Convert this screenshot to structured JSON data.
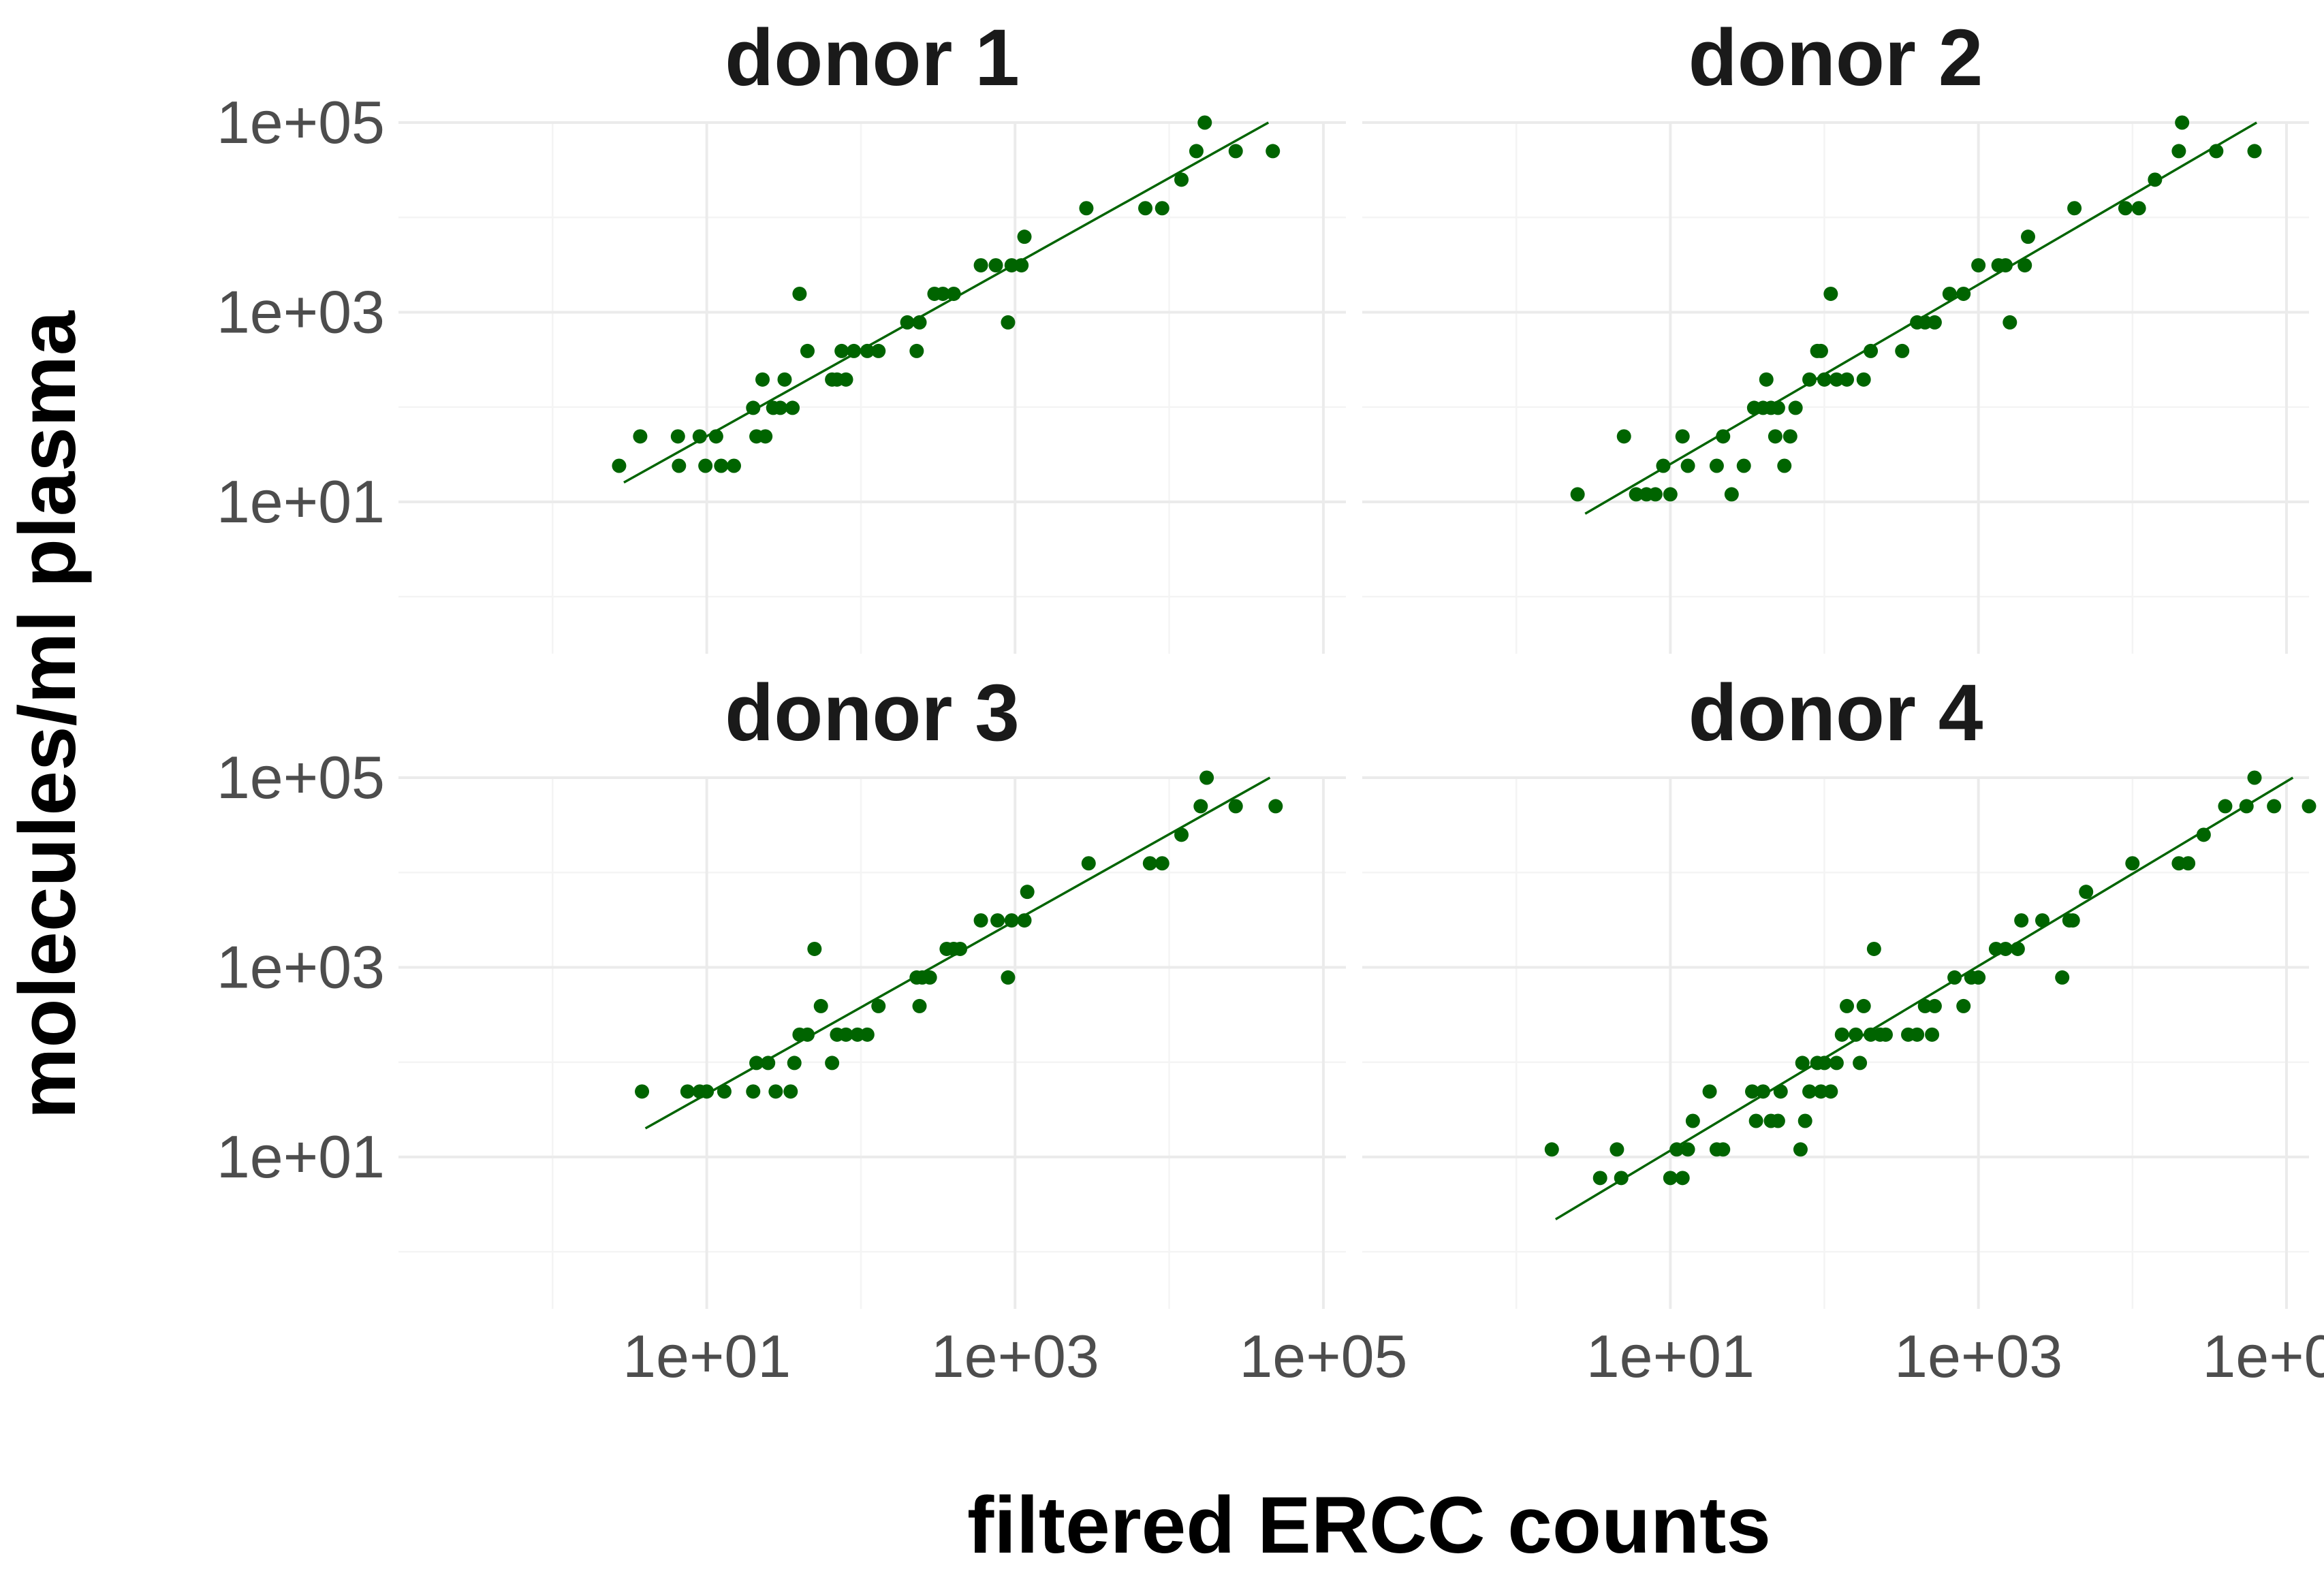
{
  "chart_data": {
    "type": "scatter",
    "xlabel": "filtered ERCC counts",
    "ylabel": "molecules/ml plasma",
    "x_scale": "log10",
    "y_scale": "log10",
    "xlim": [
      0.1,
      140000
    ],
    "ylim": [
      0.25,
      100000
    ],
    "x_ticks": [
      "1e+01",
      "1e+03",
      "1e+05"
    ],
    "y_ticks": [
      "1e+01",
      "1e+03",
      "1e+05"
    ],
    "grid": true,
    "point_color": "#006400",
    "line_color": "#006400",
    "panels": [
      {
        "title": "donor 1",
        "fit": {
          "x": [
            2.9,
            44000
          ],
          "y": [
            16,
            100000
          ]
        },
        "points": [
          [
            2.7,
            24
          ],
          [
            3.7,
            49
          ],
          [
            6.5,
            49
          ],
          [
            6.6,
            24
          ],
          [
            9,
            49
          ],
          [
            9.8,
            24
          ],
          [
            11.5,
            49
          ],
          [
            12.4,
            24
          ],
          [
            15,
            24
          ],
          [
            20,
            98
          ],
          [
            21,
            49
          ],
          [
            23,
            195
          ],
          [
            24,
            49
          ],
          [
            27,
            98
          ],
          [
            30,
            98
          ],
          [
            32,
            195
          ],
          [
            36,
            98
          ],
          [
            40,
            1563
          ],
          [
            45,
            390
          ],
          [
            65,
            195
          ],
          [
            70,
            195
          ],
          [
            75,
            390
          ],
          [
            80,
            195
          ],
          [
            90,
            390
          ],
          [
            110,
            390
          ],
          [
            130,
            390
          ],
          [
            200,
            781
          ],
          [
            230,
            390
          ],
          [
            240,
            781
          ],
          [
            300,
            1563
          ],
          [
            340,
            1563
          ],
          [
            400,
            1563
          ],
          [
            600,
            3125
          ],
          [
            750,
            3125
          ],
          [
            900,
            781
          ],
          [
            950,
            3125
          ],
          [
            1100,
            3125
          ],
          [
            1150,
            6250
          ],
          [
            2900,
            12500
          ],
          [
            7000,
            12500
          ],
          [
            9000,
            12500
          ],
          [
            12000,
            25000
          ],
          [
            15000,
            50000
          ],
          [
            17000,
            100000
          ],
          [
            27000,
            50000
          ],
          [
            47000,
            50000
          ]
        ]
      },
      {
        "title": "donor 2",
        "fit": {
          "x": [
            2.8,
            64000
          ],
          "y": [
            7.5,
            100000
          ]
        },
        "points": [
          [
            2.5,
            12
          ],
          [
            5,
            49
          ],
          [
            6,
            12
          ],
          [
            7,
            12
          ],
          [
            8,
            12
          ],
          [
            9,
            24
          ],
          [
            10,
            12
          ],
          [
            12,
            49
          ],
          [
            13,
            24
          ],
          [
            20,
            24
          ],
          [
            22,
            49
          ],
          [
            25,
            12
          ],
          [
            30,
            24
          ],
          [
            35,
            98
          ],
          [
            40,
            98
          ],
          [
            42,
            195
          ],
          [
            45,
            98
          ],
          [
            48,
            49
          ],
          [
            50,
            98
          ],
          [
            55,
            24
          ],
          [
            60,
            49
          ],
          [
            65,
            98
          ],
          [
            80,
            195
          ],
          [
            90,
            390
          ],
          [
            95,
            390
          ],
          [
            100,
            195
          ],
          [
            110,
            1563
          ],
          [
            120,
            195
          ],
          [
            140,
            195
          ],
          [
            180,
            195
          ],
          [
            200,
            390
          ],
          [
            320,
            390
          ],
          [
            400,
            781
          ],
          [
            450,
            781
          ],
          [
            520,
            781
          ],
          [
            650,
            1563
          ],
          [
            800,
            1563
          ],
          [
            1000,
            3125
          ],
          [
            1350,
            3125
          ],
          [
            1500,
            3125
          ],
          [
            1600,
            781
          ],
          [
            2000,
            3125
          ],
          [
            2100,
            6250
          ],
          [
            4200,
            12500
          ],
          [
            9000,
            12500
          ],
          [
            11000,
            12500
          ],
          [
            14000,
            25000
          ],
          [
            20000,
            50000
          ],
          [
            21000,
            100000
          ],
          [
            35000,
            50000
          ],
          [
            62000,
            50000
          ]
        ]
      },
      {
        "title": "donor 3",
        "fit": {
          "x": [
            4.0,
            45000
          ],
          "y": [
            20,
            100000
          ]
        },
        "points": [
          [
            3.8,
            49
          ],
          [
            7.5,
            49
          ],
          [
            9,
            49
          ],
          [
            10,
            49
          ],
          [
            13,
            49
          ],
          [
            20,
            49
          ],
          [
            21,
            98
          ],
          [
            25,
            98
          ],
          [
            28,
            49
          ],
          [
            35,
            49
          ],
          [
            37,
            98
          ],
          [
            40,
            195
          ],
          [
            45,
            195
          ],
          [
            50,
            1563
          ],
          [
            55,
            390
          ],
          [
            65,
            98
          ],
          [
            70,
            195
          ],
          [
            80,
            195
          ],
          [
            95,
            195
          ],
          [
            110,
            195
          ],
          [
            130,
            390
          ],
          [
            230,
            781
          ],
          [
            240,
            390
          ],
          [
            250,
            781
          ],
          [
            280,
            781
          ],
          [
            360,
            1563
          ],
          [
            400,
            1563
          ],
          [
            440,
            1563
          ],
          [
            600,
            3125
          ],
          [
            770,
            3125
          ],
          [
            900,
            781
          ],
          [
            950,
            3125
          ],
          [
            1150,
            3125
          ],
          [
            1200,
            6250
          ],
          [
            3000,
            12500
          ],
          [
            7500,
            12500
          ],
          [
            9000,
            12500
          ],
          [
            12000,
            25000
          ],
          [
            16000,
            50000
          ],
          [
            17500,
            100000
          ],
          [
            27000,
            50000
          ],
          [
            49000,
            50000
          ]
        ]
      },
      {
        "title": "donor 4",
        "fit": {
          "x": [
            1.8,
            110000
          ],
          "y": [
            2.2,
            100000
          ]
        },
        "points": [
          [
            1.7,
            12
          ],
          [
            3.5,
            6
          ],
          [
            4.5,
            12
          ],
          [
            4.8,
            6
          ],
          [
            10,
            6
          ],
          [
            11,
            12
          ],
          [
            12,
            6
          ],
          [
            13,
            12
          ],
          [
            14,
            24
          ],
          [
            18,
            49
          ],
          [
            20,
            12
          ],
          [
            22,
            12
          ],
          [
            34,
            49
          ],
          [
            36,
            24
          ],
          [
            40,
            49
          ],
          [
            45,
            24
          ],
          [
            50,
            24
          ],
          [
            52,
            49
          ],
          [
            70,
            12
          ],
          [
            72,
            98
          ],
          [
            75,
            24
          ],
          [
            80,
            49
          ],
          [
            90,
            98
          ],
          [
            95,
            49
          ],
          [
            100,
            98
          ],
          [
            110,
            49
          ],
          [
            120,
            98
          ],
          [
            130,
            195
          ],
          [
            140,
            390
          ],
          [
            160,
            195
          ],
          [
            170,
            98
          ],
          [
            180,
            390
          ],
          [
            200,
            195
          ],
          [
            210,
            1563
          ],
          [
            230,
            195
          ],
          [
            250,
            195
          ],
          [
            350,
            195
          ],
          [
            400,
            195
          ],
          [
            450,
            390
          ],
          [
            500,
            195
          ],
          [
            520,
            390
          ],
          [
            700,
            781
          ],
          [
            800,
            390
          ],
          [
            900,
            781
          ],
          [
            1000,
            781
          ],
          [
            1300,
            1563
          ],
          [
            1500,
            1563
          ],
          [
            1800,
            1563
          ],
          [
            1900,
            3125
          ],
          [
            2600,
            3125
          ],
          [
            3500,
            781
          ],
          [
            3900,
            3125
          ],
          [
            4100,
            3125
          ],
          [
            5000,
            6250
          ],
          [
            10000,
            12500
          ],
          [
            20000,
            12500
          ],
          [
            23000,
            12500
          ],
          [
            29000,
            25000
          ],
          [
            40000,
            50000
          ],
          [
            55000,
            50000
          ],
          [
            62000,
            100000
          ],
          [
            83000,
            50000
          ],
          [
            140000,
            50000
          ]
        ]
      }
    ]
  }
}
